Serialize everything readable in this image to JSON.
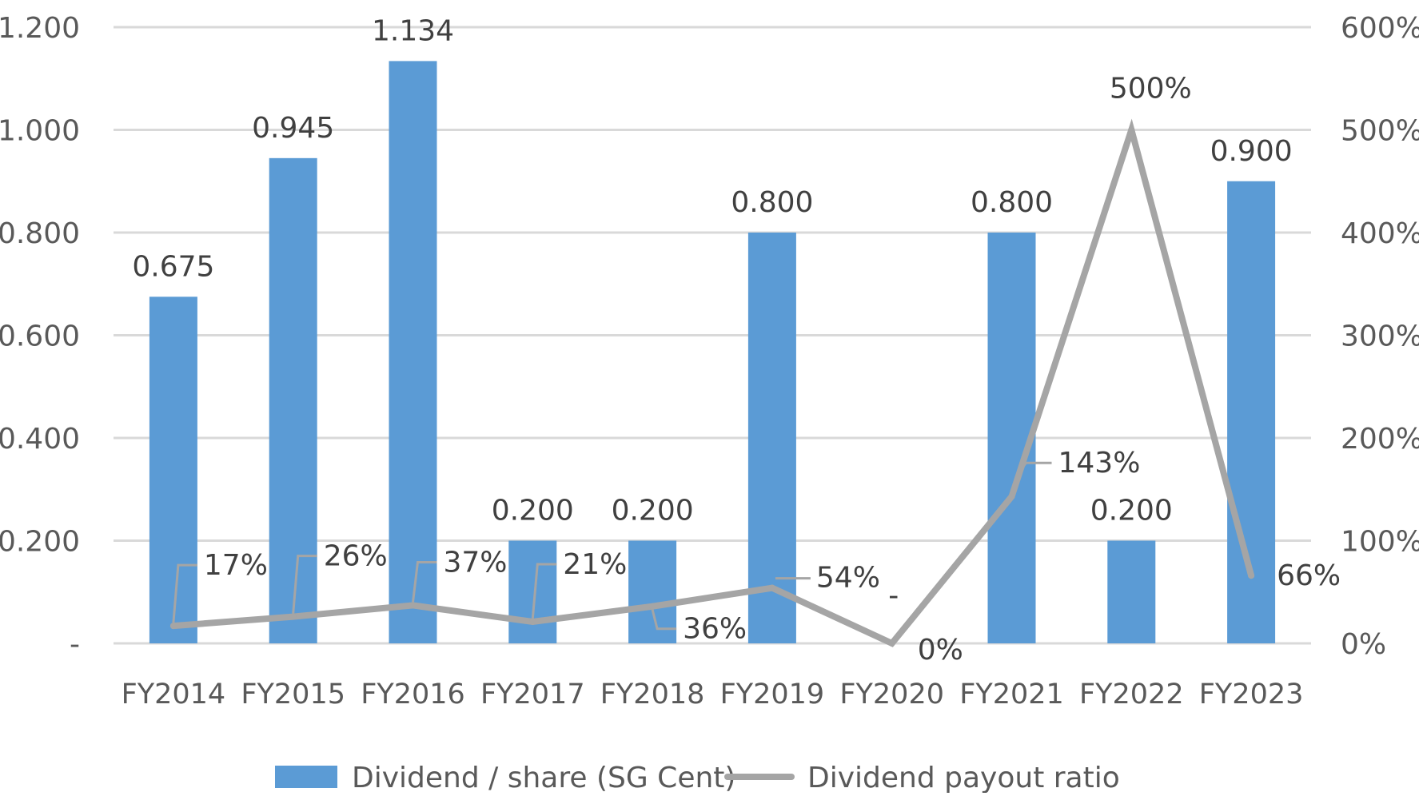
{
  "chart_data": {
    "type": "bar",
    "categories": [
      "FY2014",
      "FY2015",
      "FY2016",
      "FY2017",
      "FY2018",
      "FY2019",
      "FY2020",
      "FY2021",
      "FY2022",
      "FY2023"
    ],
    "series": [
      {
        "name": "Dividend / share (SG Cent)",
        "type": "bar",
        "axis": "left",
        "values": [
          0.675,
          0.945,
          1.134,
          0.2,
          0.2,
          0.8,
          0,
          0.8,
          0.2,
          0.9
        ],
        "labels": [
          "0.675",
          "0.945",
          "1.134",
          "0.200",
          "0.200",
          "0.800",
          "-",
          "0.800",
          "0.200",
          "0.900"
        ],
        "color": "#5B9BD5"
      },
      {
        "name": "Dividend payout ratio",
        "type": "line",
        "axis": "right",
        "values": [
          17,
          26,
          37,
          21,
          36,
          54,
          0,
          143,
          500,
          66
        ],
        "labels": [
          "17%",
          "26%",
          "37%",
          "21%",
          "36%",
          "54%",
          "0%",
          "143%",
          "500%",
          "66%"
        ],
        "color": "#A5A5A5"
      }
    ],
    "y_left": {
      "ylim": [
        0,
        1.2
      ],
      "ticks": [
        0,
        0.2,
        0.4,
        0.6,
        0.8,
        1.0,
        1.2
      ],
      "tick_labels": [
        "-",
        "0.200",
        "0.400",
        "0.600",
        "0.800",
        "1.000",
        "1.200"
      ]
    },
    "y_right": {
      "ylim": [
        0,
        600
      ],
      "ticks": [
        0,
        100,
        200,
        300,
        400,
        500,
        600
      ],
      "tick_labels": [
        "0%",
        "100%",
        "200%",
        "300%",
        "400%",
        "500%",
        "600%"
      ]
    },
    "grid": true,
    "legend_position": "bottom",
    "title": "",
    "xlabel": "",
    "ylabel": ""
  }
}
